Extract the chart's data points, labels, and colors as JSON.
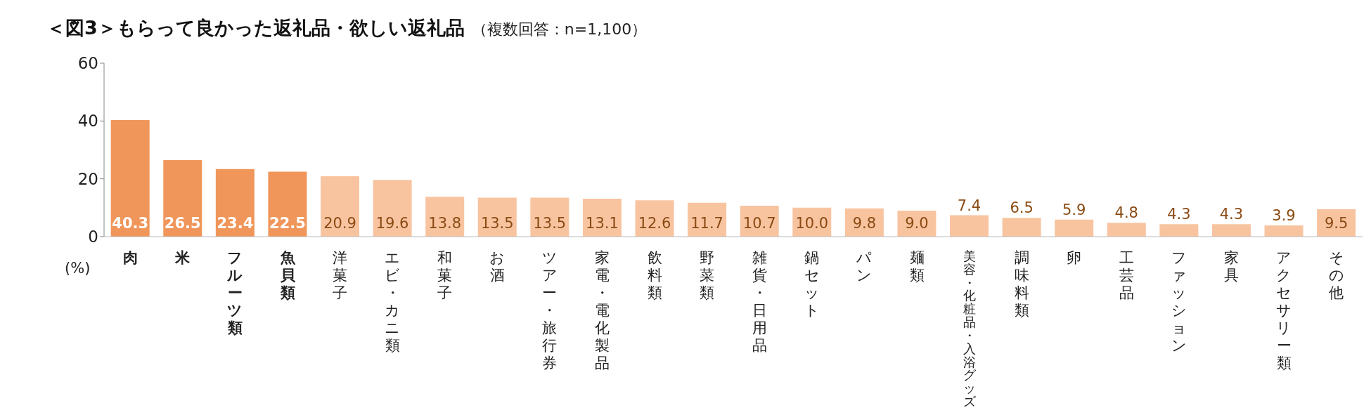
{
  "chart_data": {
    "type": "bar",
    "title": "＜図3＞もらって良かった返礼品・欲しい返礼品",
    "subtitle": "（複数回答：n=1,100）",
    "ylabel": "(%)",
    "categories": [
      "肉",
      "米",
      "フルーツ類",
      "魚貝類",
      "洋菓子",
      "エビ・カニ類",
      "和菓子",
      "お酒",
      "ツアー・旅行券",
      "家電・電化製品",
      "飲料類",
      "野菜類",
      "雑貨・日用品",
      "鍋セット",
      "パン",
      "麺類",
      "美容・化粧品・入浴グッズ",
      "調味料類",
      "卵",
      "工芸品",
      "ファッション",
      "家具",
      "アクセサリー類",
      "その他"
    ],
    "values": [
      40.3,
      26.5,
      23.4,
      22.5,
      20.9,
      19.6,
      13.8,
      13.5,
      13.5,
      13.1,
      12.6,
      11.7,
      10.7,
      10.0,
      9.8,
      9.0,
      7.4,
      6.5,
      5.9,
      4.8,
      4.3,
      4.3,
      3.9,
      9.5
    ],
    "value_labels": [
      "40.3",
      "26.5",
      "23.4",
      "22.5",
      "20.9",
      "19.6",
      "13.8",
      "13.5",
      "13.5",
      "13.1",
      "12.6",
      "11.7",
      "10.7",
      "10.0",
      "9.8",
      "9.0",
      "7.4",
      "6.5",
      "5.9",
      "4.8",
      "4.3",
      "4.3",
      "3.9",
      "9.5"
    ],
    "colors": [
      "#f0965a",
      "#f0965a",
      "#f0965a",
      "#f0965a",
      "#f8c4a0",
      "#f8c4a0",
      "#f8c4a0",
      "#f8c4a0",
      "#f8c4a0",
      "#f8c4a0",
      "#f8c4a0",
      "#f8c4a0",
      "#f8c4a0",
      "#f8c4a0",
      "#f8c4a0",
      "#f8c4a0",
      "#f8c4a0",
      "#f8c4a0",
      "#f8c4a0",
      "#f8c4a0",
      "#f8c4a0",
      "#f8c4a0",
      "#f8c4a0",
      "#f8c4a0"
    ],
    "ylim": [
      0,
      60
    ],
    "yticks": [
      0,
      20,
      40,
      60
    ],
    "grid": false,
    "legend": false
  }
}
